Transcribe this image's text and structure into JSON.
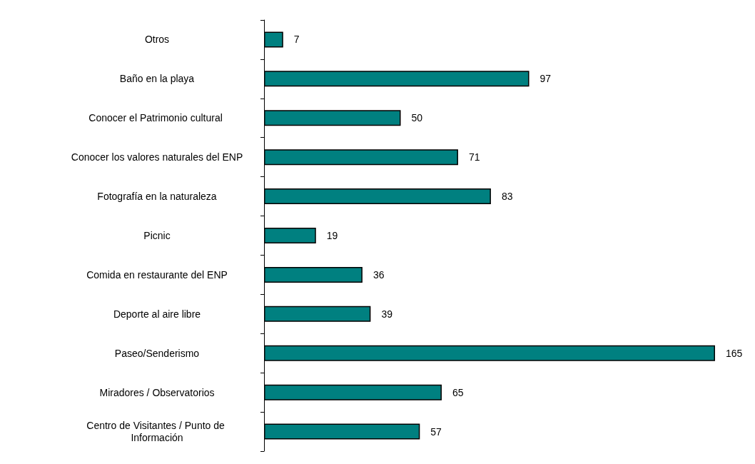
{
  "chart_data": {
    "type": "bar",
    "orientation": "horizontal",
    "categories": [
      "Otros",
      "Baño en la playa",
      "Conocer el Patrimonio cultural ",
      "Conocer los valores naturales del ENP",
      "Fotografía en la naturaleza",
      "Picnic",
      "Comida en restaurante del ENP",
      "Deporte al aire libre",
      "Paseo/Senderismo",
      "Miradores / Observatorios",
      "Centro de Visitantes / Punto de Información"
    ],
    "values": [
      7,
      97,
      50,
      71,
      83,
      19,
      36,
      39,
      165,
      65,
      57
    ],
    "color": "#008080",
    "data_labels": true
  }
}
